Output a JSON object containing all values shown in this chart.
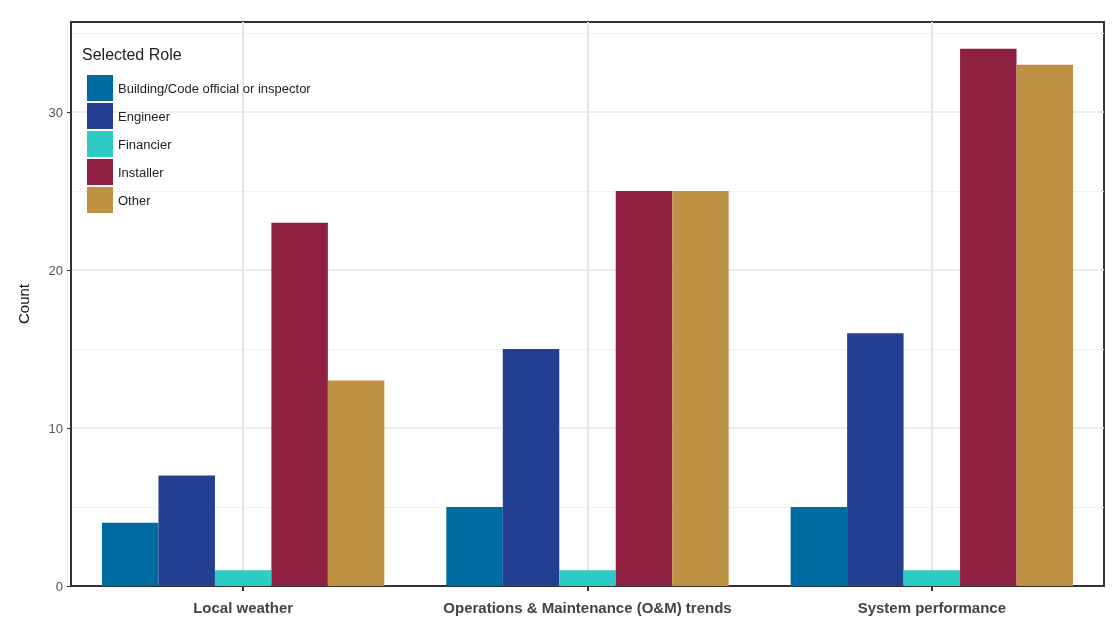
{
  "chart_data": {
    "type": "bar",
    "ylabel": "Count",
    "legend_title": "Selected Role",
    "categories": [
      "Local weather",
      "Operations & Maintenance (O&M) trends",
      "System performance"
    ],
    "series": [
      {
        "name": "Building/Code official or inspector",
        "color": "#006ba0",
        "values": [
          4,
          5,
          5
        ]
      },
      {
        "name": "Engineer",
        "color": "#233f92",
        "values": [
          7,
          15,
          16
        ]
      },
      {
        "name": "Financier",
        "color": "#2ecbc5",
        "values": [
          1,
          1,
          1
        ]
      },
      {
        "name": "Installer",
        "color": "#8e2142",
        "values": [
          23,
          25,
          34
        ]
      },
      {
        "name": "Other",
        "color": "#bd9243",
        "values": [
          13,
          25,
          33
        ]
      }
    ],
    "ylim": [
      0,
      35.7
    ],
    "yticks": [
      0,
      10,
      20,
      30
    ],
    "grid": true,
    "legend": "top left"
  }
}
